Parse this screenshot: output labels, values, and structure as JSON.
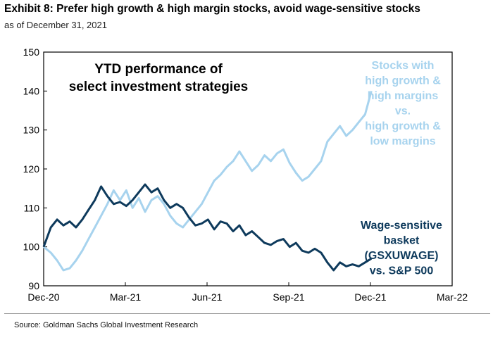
{
  "title": "Exhibit 8: Prefer high growth & high margin stocks, avoid wage-sensitive stocks",
  "subtitle": "as of December 31, 2021",
  "source": "Source: Goldman Sachs Global Investment Research",
  "colors": {
    "growth_series": "#a7d3ee",
    "wage_series": "#0e3a5c",
    "axis": "#000000",
    "rule": "#9a9a9a"
  },
  "chart_data": {
    "type": "line",
    "title": "YTD performance of select investment strategies",
    "title_lines": [
      "YTD performance of",
      "select investment strategies"
    ],
    "x_ticks": [
      "Dec-20",
      "Mar-21",
      "Jun-21",
      "Sep-21",
      "Dec-21",
      "Mar-22"
    ],
    "y_ticks": [
      "150",
      "140",
      "130",
      "120",
      "110",
      "100",
      "90"
    ],
    "xlim": [
      "2020-12-31",
      "2022-03-31"
    ],
    "ylim": [
      90,
      150
    ],
    "grid": false,
    "series": [
      {
        "name": "Stocks with high growth & high margins vs. high growth & low margins",
        "label_lines": [
          "Stocks with",
          "high growth &",
          "high margins",
          "vs.",
          "high growth &",
          "low margins"
        ],
        "color": "#a7d3ee",
        "points": [
          [
            "2020-12-31",
            100
          ],
          [
            "2021-01-08",
            98.5
          ],
          [
            "2021-01-15",
            96.5
          ],
          [
            "2021-01-22",
            94
          ],
          [
            "2021-01-29",
            94.5
          ],
          [
            "2021-02-05",
            96.5
          ],
          [
            "2021-02-12",
            99
          ],
          [
            "2021-02-19",
            102
          ],
          [
            "2021-02-26",
            105
          ],
          [
            "2021-03-05",
            108
          ],
          [
            "2021-03-12",
            111
          ],
          [
            "2021-03-19",
            114.5
          ],
          [
            "2021-03-26",
            112
          ],
          [
            "2021-04-02",
            114.5
          ],
          [
            "2021-04-09",
            110
          ],
          [
            "2021-04-16",
            112.5
          ],
          [
            "2021-04-23",
            109
          ],
          [
            "2021-04-30",
            112
          ],
          [
            "2021-05-07",
            113
          ],
          [
            "2021-05-14",
            111
          ],
          [
            "2021-05-21",
            108
          ],
          [
            "2021-05-28",
            106
          ],
          [
            "2021-06-04",
            105
          ],
          [
            "2021-06-11",
            107
          ],
          [
            "2021-06-18",
            109
          ],
          [
            "2021-06-25",
            111
          ],
          [
            "2021-07-02",
            114
          ],
          [
            "2021-07-09",
            117
          ],
          [
            "2021-07-16",
            118.5
          ],
          [
            "2021-07-23",
            120.5
          ],
          [
            "2021-07-30",
            122
          ],
          [
            "2021-08-06",
            124.5
          ],
          [
            "2021-08-13",
            122
          ],
          [
            "2021-08-20",
            119.5
          ],
          [
            "2021-08-27",
            121
          ],
          [
            "2021-09-03",
            123.5
          ],
          [
            "2021-09-10",
            122
          ],
          [
            "2021-09-17",
            124
          ],
          [
            "2021-09-24",
            125
          ],
          [
            "2021-10-01",
            121.5
          ],
          [
            "2021-10-08",
            119
          ],
          [
            "2021-10-15",
            117
          ],
          [
            "2021-10-22",
            118
          ],
          [
            "2021-10-29",
            120
          ],
          [
            "2021-11-05",
            122
          ],
          [
            "2021-11-12",
            127
          ],
          [
            "2021-11-19",
            129
          ],
          [
            "2021-11-26",
            131
          ],
          [
            "2021-12-03",
            128.5
          ],
          [
            "2021-12-10",
            130
          ],
          [
            "2021-12-17",
            132
          ],
          [
            "2021-12-24",
            134
          ],
          [
            "2021-12-31",
            140
          ]
        ]
      },
      {
        "name": "Wage-sensitive basket (GSXUWAGE) vs. S&P 500",
        "label_lines": [
          "Wage-sensitive",
          "basket",
          "(GSXUWAGE)",
          "vs. S&P 500"
        ],
        "color": "#0e3a5c",
        "points": [
          [
            "2020-12-31",
            100
          ],
          [
            "2021-01-08",
            105
          ],
          [
            "2021-01-15",
            107
          ],
          [
            "2021-01-22",
            105.5
          ],
          [
            "2021-01-29",
            106.5
          ],
          [
            "2021-02-05",
            105
          ],
          [
            "2021-02-12",
            107
          ],
          [
            "2021-02-19",
            109.5
          ],
          [
            "2021-02-26",
            112
          ],
          [
            "2021-03-05",
            115.5
          ],
          [
            "2021-03-12",
            113
          ],
          [
            "2021-03-19",
            111
          ],
          [
            "2021-03-26",
            111.5
          ],
          [
            "2021-04-02",
            110.5
          ],
          [
            "2021-04-09",
            112
          ],
          [
            "2021-04-16",
            114
          ],
          [
            "2021-04-23",
            116
          ],
          [
            "2021-04-30",
            114
          ],
          [
            "2021-05-07",
            115
          ],
          [
            "2021-05-14",
            112
          ],
          [
            "2021-05-21",
            110
          ],
          [
            "2021-05-28",
            111
          ],
          [
            "2021-06-04",
            110
          ],
          [
            "2021-06-11",
            107.5
          ],
          [
            "2021-06-18",
            105.5
          ],
          [
            "2021-06-25",
            106
          ],
          [
            "2021-07-02",
            107
          ],
          [
            "2021-07-09",
            104.5
          ],
          [
            "2021-07-16",
            106.5
          ],
          [
            "2021-07-23",
            106
          ],
          [
            "2021-07-30",
            104
          ],
          [
            "2021-08-06",
            105.5
          ],
          [
            "2021-08-13",
            103
          ],
          [
            "2021-08-20",
            104
          ],
          [
            "2021-08-27",
            102.5
          ],
          [
            "2021-09-03",
            101
          ],
          [
            "2021-09-10",
            100.5
          ],
          [
            "2021-09-17",
            101.5
          ],
          [
            "2021-09-24",
            102
          ],
          [
            "2021-10-01",
            100
          ],
          [
            "2021-10-08",
            101
          ],
          [
            "2021-10-15",
            99
          ],
          [
            "2021-10-22",
            98.5
          ],
          [
            "2021-10-29",
            99.5
          ],
          [
            "2021-11-05",
            98.5
          ],
          [
            "2021-11-12",
            96
          ],
          [
            "2021-11-19",
            94
          ],
          [
            "2021-11-26",
            96
          ],
          [
            "2021-12-03",
            95
          ],
          [
            "2021-12-10",
            95.5
          ],
          [
            "2021-12-17",
            95
          ],
          [
            "2021-12-24",
            96
          ],
          [
            "2021-12-31",
            97
          ]
        ]
      }
    ]
  }
}
